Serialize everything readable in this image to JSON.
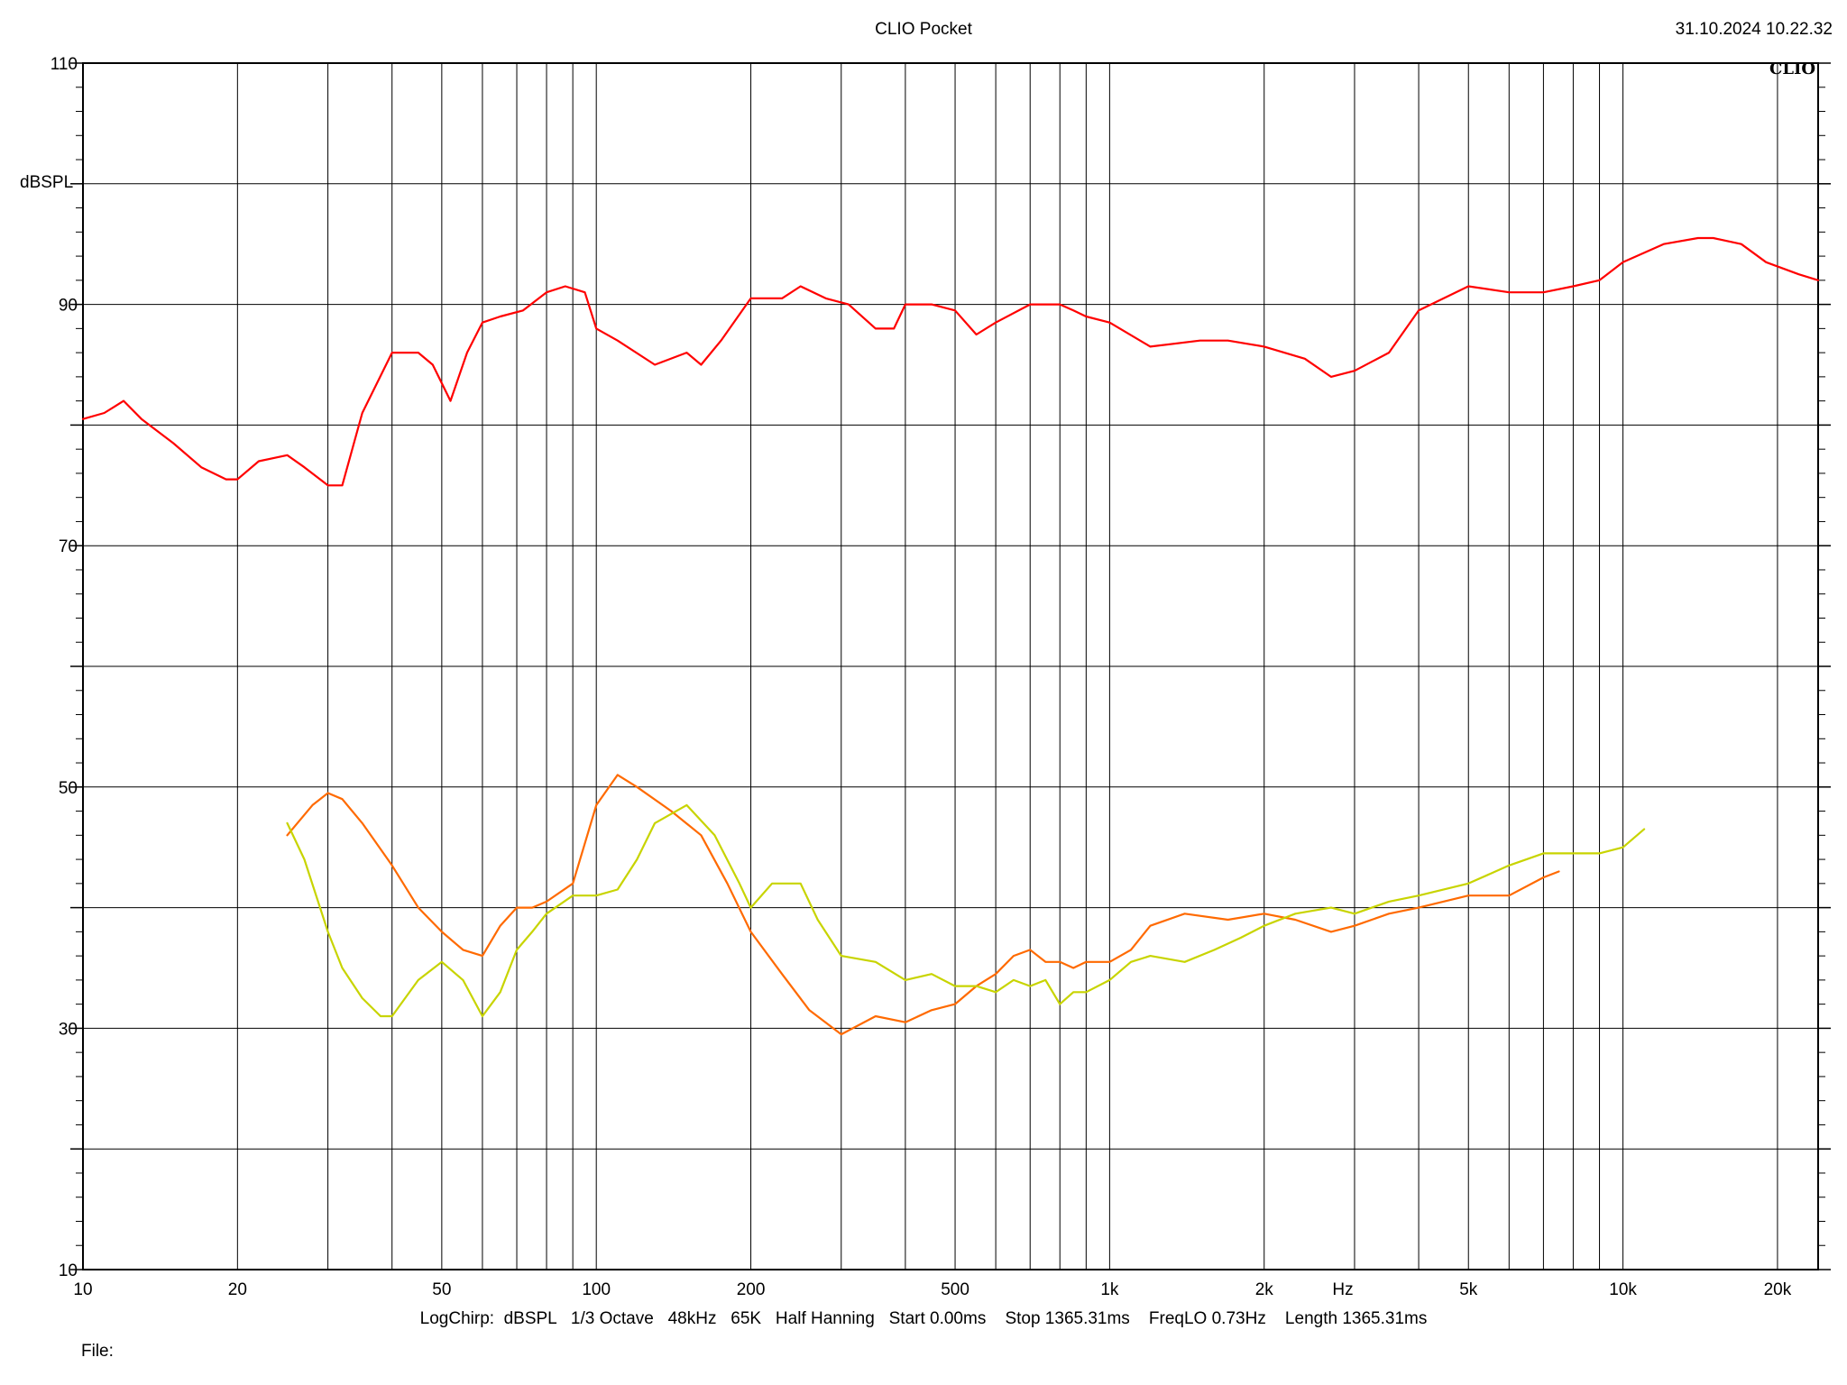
{
  "header": {
    "title": "CLIO Pocket",
    "timestamp": "31.10.2024 10.22.32",
    "brand": "CLIO"
  },
  "footer": {
    "info": "LogChirp:  dBSPL   1/3 Octave   48kHz   65K   Half Hanning   Start 0.00ms    Stop 1365.31ms    FreqLO 0.73Hz    Length 1365.31ms",
    "file_label": "File:"
  },
  "chart_data": {
    "type": "line",
    "title": "CLIO Pocket",
    "xlabel": "Hz",
    "ylabel": "dBSPL",
    "x_scale": "log",
    "xlim": [
      10,
      24000
    ],
    "ylim": [
      10,
      110
    ],
    "grid": true,
    "x_tick_labels": [
      {
        "value": 10,
        "label": "10"
      },
      {
        "value": 20,
        "label": "20"
      },
      {
        "value": 50,
        "label": "50"
      },
      {
        "value": 100,
        "label": "100"
      },
      {
        "value": 200,
        "label": "200"
      },
      {
        "value": 500,
        "label": "500"
      },
      {
        "value": 1000,
        "label": "1k"
      },
      {
        "value": 2000,
        "label": "2k"
      },
      {
        "value": 5000,
        "label": "5k"
      },
      {
        "value": 10000,
        "label": "10k"
      },
      {
        "value": 20000,
        "label": "20k"
      }
    ],
    "y_tick_labels": [
      {
        "value": 110,
        "label": "110"
      },
      {
        "value": 90,
        "label": "90"
      },
      {
        "value": 70,
        "label": "70"
      },
      {
        "value": 50,
        "label": "50"
      },
      {
        "value": 30,
        "label": "30"
      },
      {
        "value": 10,
        "label": "10"
      }
    ],
    "series": [
      {
        "color": "#ff0000",
        "x": [
          10,
          11,
          12,
          13,
          15,
          17,
          19,
          20,
          22,
          25,
          27,
          30,
          32,
          35,
          40,
          45,
          48,
          52,
          56,
          60,
          65,
          72,
          80,
          87,
          95,
          100,
          110,
          130,
          150,
          160,
          175,
          200,
          230,
          250,
          280,
          310,
          350,
          380,
          400,
          450,
          500,
          550,
          600,
          700,
          800,
          850,
          900,
          1000,
          1200,
          1500,
          1700,
          2000,
          2400,
          2700,
          3000,
          3500,
          4000,
          5000,
          6000,
          7000,
          8000,
          9000,
          10000,
          12000,
          14000,
          15000,
          17000,
          19000,
          22000,
          24000
        ],
        "values": [
          80.5,
          81,
          82,
          80.5,
          78.5,
          76.5,
          75.5,
          75.5,
          77,
          77.5,
          76.5,
          75,
          75,
          81,
          86,
          86,
          85,
          82,
          86,
          88.5,
          89,
          89.5,
          91,
          91.5,
          91,
          88,
          87,
          85,
          86,
          85,
          87,
          90.5,
          90.5,
          91.5,
          90.5,
          90,
          88,
          88,
          90,
          90,
          89.5,
          87.5,
          88.5,
          90,
          90,
          89.5,
          89,
          88.5,
          86.5,
          87,
          87,
          86.5,
          85.5,
          84,
          84.5,
          86,
          89.5,
          91.5,
          91,
          91,
          91.5,
          92,
          93.5,
          95,
          95.5,
          95.5,
          95,
          93.5,
          92.5,
          92
        ]
      },
      {
        "color": "#ff6a00",
        "x": [
          25,
          28,
          30,
          32,
          35,
          40,
          45,
          50,
          55,
          60,
          65,
          70,
          75,
          80,
          90,
          100,
          110,
          120,
          140,
          160,
          180,
          200,
          230,
          260,
          300,
          350,
          400,
          450,
          500,
          550,
          600,
          650,
          700,
          750,
          800,
          850,
          900,
          1000,
          1100,
          1200,
          1400,
          1700,
          2000,
          2300,
          2700,
          3000,
          3500,
          4000,
          5000,
          6000,
          7000,
          7500
        ],
        "values": [
          46,
          48.5,
          49.5,
          49,
          47,
          43.5,
          40,
          38,
          36.5,
          36,
          38.5,
          40,
          40,
          40.5,
          42,
          48.5,
          51,
          50,
          48,
          46,
          42,
          38,
          34.5,
          31.5,
          29.5,
          31,
          30.5,
          31.5,
          32,
          33.5,
          34.5,
          36,
          36.5,
          35.5,
          35.5,
          35,
          35.5,
          35.5,
          36.5,
          38.5,
          39.5,
          39,
          39.5,
          39,
          38,
          38.5,
          39.5,
          40,
          41,
          41,
          42.5,
          43
        ]
      },
      {
        "color": "#c8d400",
        "x": [
          25,
          27,
          30,
          32,
          35,
          38,
          40,
          45,
          50,
          55,
          60,
          65,
          70,
          75,
          80,
          90,
          100,
          110,
          120,
          130,
          150,
          170,
          190,
          200,
          220,
          250,
          270,
          300,
          350,
          400,
          450,
          500,
          550,
          600,
          650,
          700,
          750,
          800,
          850,
          900,
          1000,
          1100,
          1200,
          1400,
          1600,
          1800,
          2000,
          2300,
          2700,
          3000,
          3500,
          4000,
          5000,
          6000,
          7000,
          8000,
          9000,
          10000,
          11000
        ],
        "values": [
          47,
          44,
          38,
          35,
          32.5,
          31,
          31,
          34,
          35.5,
          34,
          31,
          33,
          36.5,
          38,
          39.5,
          41,
          41,
          41.5,
          44,
          47,
          48.5,
          46,
          42,
          40,
          42,
          42,
          39,
          36,
          35.5,
          34,
          34.5,
          33.5,
          33.5,
          33,
          34,
          33.5,
          34,
          32,
          33,
          33,
          34,
          35.5,
          36,
          35.5,
          36.5,
          37.5,
          38.5,
          39.5,
          40,
          39.5,
          40.5,
          41,
          42,
          43.5,
          44.5,
          44.5,
          44.5,
          45,
          46.5
        ]
      }
    ]
  }
}
